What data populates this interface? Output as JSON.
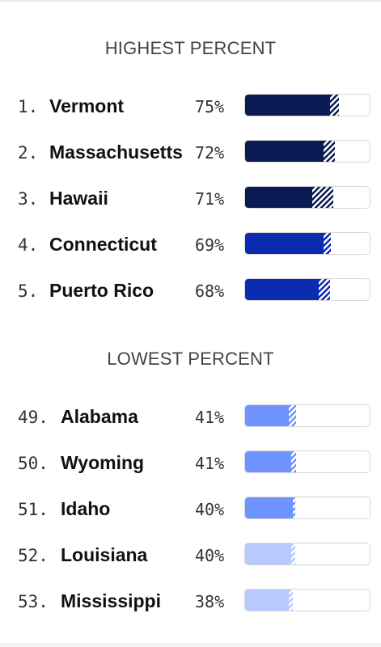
{
  "colors": {
    "dark_navy": "#0b1a52",
    "royal_blue": "#0b2bb0",
    "medium_blue": "#6f93ff",
    "light_blue": "#b9c8ff"
  },
  "sections": {
    "highest": {
      "title": "HIGHEST PERCENT"
    },
    "lowest": {
      "title": "LOWEST PERCENT"
    }
  },
  "chart_data": {
    "type": "bar",
    "groups": [
      {
        "title": "HIGHEST PERCENT",
        "rows": [
          {
            "rank": "1.",
            "name": "Vermont",
            "percent_label": "75%",
            "value": 75,
            "solid": 68,
            "color": "#0b1a52"
          },
          {
            "rank": "2.",
            "name": "Massachusetts",
            "percent_label": "72%",
            "value": 72,
            "solid": 63,
            "color": "#0b1a52"
          },
          {
            "rank": "3.",
            "name": "Hawaii",
            "percent_label": "71%",
            "value": 71,
            "solid": 54,
            "color": "#0b1a52"
          },
          {
            "rank": "4.",
            "name": "Connecticut",
            "percent_label": "69%",
            "value": 69,
            "solid": 63,
            "color": "#0b2bb0"
          },
          {
            "rank": "5.",
            "name": "Puerto Rico",
            "percent_label": "68%",
            "value": 68,
            "solid": 59,
            "color": "#0b2bb0"
          }
        ]
      },
      {
        "title": "LOWEST PERCENT",
        "rows": [
          {
            "rank": "49.",
            "name": "Alabama",
            "percent_label": "41%",
            "value": 41,
            "solid": 35,
            "color": "#6f93ff"
          },
          {
            "rank": "50.",
            "name": "Wyoming",
            "percent_label": "41%",
            "value": 41,
            "solid": 37,
            "color": "#6f93ff"
          },
          {
            "rank": "51.",
            "name": "Idaho",
            "percent_label": "40%",
            "value": 40,
            "solid": 38,
            "color": "#6f93ff"
          },
          {
            "rank": "52.",
            "name": "Louisiana",
            "percent_label": "40%",
            "value": 40,
            "solid": 37,
            "color": "#b9c8ff"
          },
          {
            "rank": "53.",
            "name": "Mississippi",
            "percent_label": "38%",
            "value": 38,
            "solid": 35,
            "color": "#b9c8ff"
          }
        ]
      }
    ],
    "value_range": [
      0,
      100
    ]
  }
}
